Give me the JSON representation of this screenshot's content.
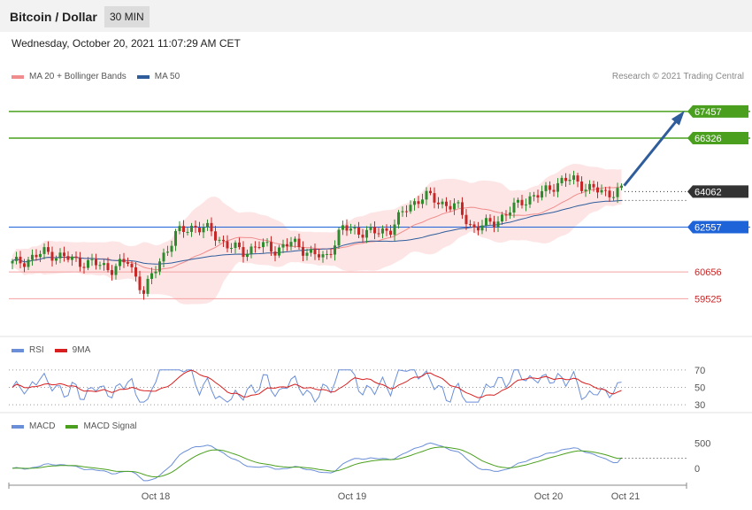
{
  "header": {
    "title": "Bitcoin / Dollar",
    "interval": "30 MIN"
  },
  "datetime": "Wednesday, October 20, 2021 11:07:29 AM CET",
  "copyright": "Research © 2021 Trading Central",
  "legend_main": [
    {
      "label": "MA 20 + Bollinger Bands",
      "color": "#f08c8c"
    },
    {
      "label": "MA 50",
      "color": "#2f5d9c"
    }
  ],
  "legend_rsi": [
    {
      "label": "RSI",
      "color": "#6a8ed8"
    },
    {
      "label": "9MA",
      "color": "#d81e1e"
    }
  ],
  "legend_macd": [
    {
      "label": "MACD",
      "color": "#6a8ed8"
    },
    {
      "label": "MACD Signal",
      "color": "#4aa01e"
    }
  ],
  "colors": {
    "up": "#2e8b2e",
    "down": "#c62828",
    "band": "#fde2e2",
    "target": "#4aa01e",
    "pivot": "#1e64d8",
    "support": "#f4a0a0",
    "support_text": "#c62828",
    "current": "#333333",
    "arrow": "#2f5d9c"
  },
  "chart_data": [
    {
      "type": "candlestick",
      "ylim": [
        58000,
        68500
      ],
      "levels": [
        {
          "value": 67457,
          "label": "67457",
          "kind": "target"
        },
        {
          "value": 66326,
          "label": "66326",
          "kind": "target"
        },
        {
          "value": 64062,
          "label": "64062",
          "kind": "current"
        },
        {
          "value": 62557,
          "label": "62557",
          "kind": "pivot"
        },
        {
          "value": 60656,
          "label": "60656",
          "kind": "support"
        },
        {
          "value": 59525,
          "label": "59525",
          "kind": "support"
        }
      ],
      "candles_summary": [
        61000,
        61200,
        61500,
        61300,
        61100,
        61000,
        60800,
        61100,
        59800,
        61200,
        62300,
        62600,
        62400,
        61800,
        61500,
        61800,
        61600,
        61900,
        61500,
        61200,
        62500,
        62400,
        62300,
        62500,
        63400,
        63900,
        63600,
        63400,
        62500,
        62700,
        63100,
        63700,
        63900,
        64400,
        64600,
        64200,
        64000,
        64100
      ],
      "forecast_target": 67457,
      "x_ticks": [
        "Oct 18",
        "Oct 19",
        "Oct 20",
        "Oct 21"
      ]
    },
    {
      "type": "line",
      "name": "RSI",
      "y_ticks": [
        70,
        50,
        30
      ],
      "ylim": [
        25,
        80
      ],
      "current": 56
    },
    {
      "type": "line",
      "name": "MACD",
      "y_ticks": [
        500,
        0
      ],
      "ylim": [
        -300,
        750
      ],
      "current": 210
    }
  ]
}
